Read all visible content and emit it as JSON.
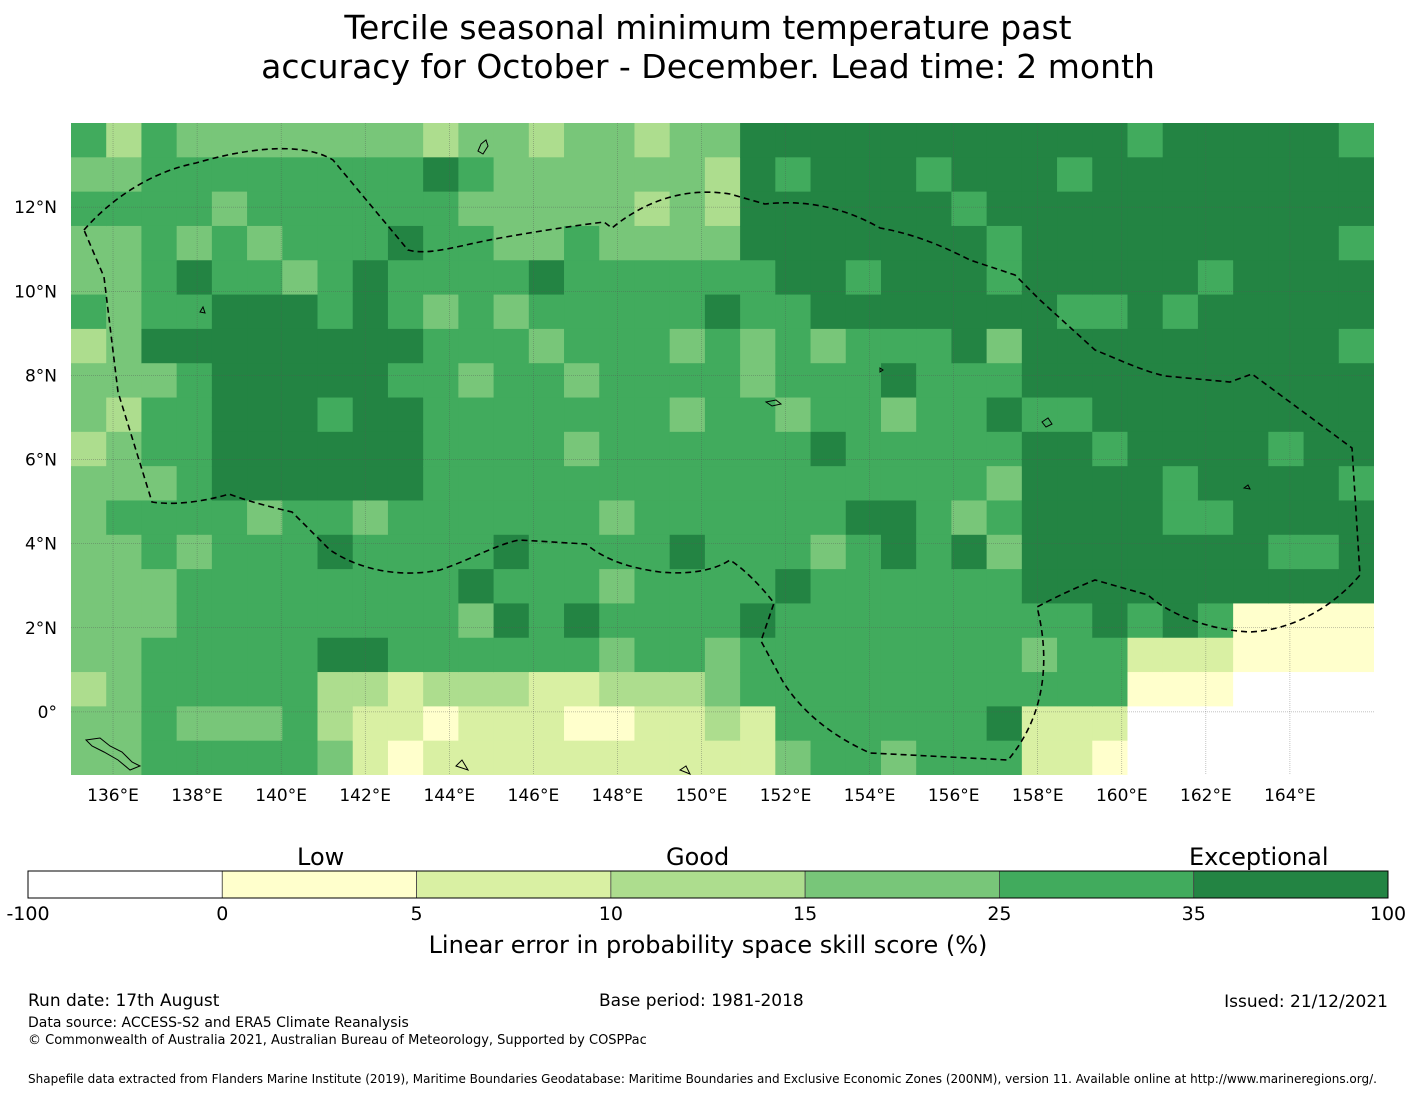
{
  "title": {
    "line1": "Tercile seasonal minimum temperature past",
    "line2": "accuracy for October - December. Lead time: 2 month"
  },
  "map": {
    "lon_labels": [
      "136°E",
      "138°E",
      "140°E",
      "142°E",
      "144°E",
      "146°E",
      "148°E",
      "150°E",
      "152°E",
      "154°E",
      "156°E",
      "158°E",
      "160°E",
      "162°E",
      "164°E"
    ],
    "lat_labels": [
      "12°N",
      "10°N",
      "8°N",
      "6°N",
      "4°N",
      "2°N",
      "0°"
    ],
    "extent": {
      "lon_min": 135,
      "lon_max": 166,
      "lat_min": -1.5,
      "lat_max": 14
    },
    "grid": "on",
    "boundary_style": "dashed"
  },
  "colorbar": {
    "categories": [
      "Low",
      "Good",
      "Exceptional"
    ],
    "ticks": [
      "-100",
      "0",
      "5",
      "10",
      "15",
      "25",
      "35",
      "100"
    ],
    "colors": [
      "#ffffff",
      "#ffffcc",
      "#d9f0a3",
      "#addd8e",
      "#78c679",
      "#41ab5d",
      "#238443"
    ],
    "label": "Linear error in probability space skill score (%)"
  },
  "footer": {
    "run_date": "Run date: 17th August",
    "base_period": "Base period: 1981-2018",
    "issued": "Issued: 21/12/2021",
    "data_source": "Data source: ACCESS-S2 and ERA5 Climate Reanalysis",
    "copyright": "© Commonwealth of Australia 2021, Australian Bureau of Meteorology, Supported by COSPPac",
    "shapefile": "Shapefile data extracted from Flanders Marine Institute (2019), Maritime Boundaries Geodatabase: Maritime Boundaries and Exclusive Economic Zones (200NM), version 11. Available online at http://www.marineregions.org/."
  }
}
